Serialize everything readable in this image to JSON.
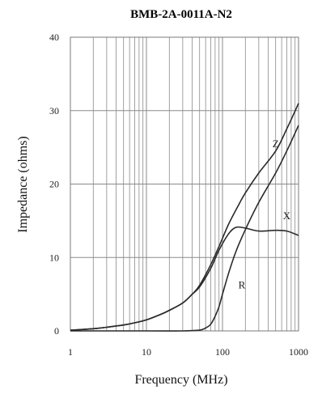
{
  "chart_data": {
    "type": "line",
    "title": "BMB-2A-0011A-N2",
    "xlabel": "Frequency (MHz)",
    "ylabel": "Impedance (ohms)",
    "xscale": "log",
    "xlim": [
      1,
      1000
    ],
    "ylim": [
      0,
      40
    ],
    "xticks": [
      1,
      10,
      100,
      1000
    ],
    "xtick_labels": [
      "1",
      "10",
      "100",
      "1000"
    ],
    "yticks": [
      0,
      10,
      20,
      30,
      40
    ],
    "ytick_labels": [
      "0",
      "10",
      "20",
      "30",
      "40"
    ],
    "grid": true,
    "series": [
      {
        "name": "Z",
        "x": [
          1,
          2,
          3,
          5,
          7,
          10,
          15,
          20,
          30,
          40,
          50,
          70,
          90,
          120,
          160,
          200,
          300,
          500,
          700,
          1000
        ],
        "y": [
          0.1,
          0.3,
          0.5,
          0.8,
          1.1,
          1.5,
          2.2,
          2.8,
          3.8,
          5.0,
          6.2,
          9.0,
          11.5,
          14.5,
          17.0,
          18.8,
          21.5,
          24.5,
          27.5,
          31.0
        ]
      },
      {
        "name": "X",
        "x": [
          1,
          2,
          3,
          5,
          7,
          10,
          15,
          20,
          30,
          40,
          50,
          70,
          90,
          120,
          150,
          200,
          300,
          500,
          700,
          1000
        ],
        "y": [
          0.1,
          0.3,
          0.5,
          0.8,
          1.1,
          1.5,
          2.2,
          2.8,
          3.8,
          5.0,
          6.0,
          8.5,
          11.0,
          13.2,
          14.1,
          14.0,
          13.6,
          13.7,
          13.6,
          13.0
        ]
      },
      {
        "name": "R",
        "x": [
          1,
          10,
          30,
          50,
          60,
          70,
          80,
          90,
          100,
          120,
          150,
          200,
          300,
          500,
          700,
          1000
        ],
        "y": [
          0,
          0,
          0,
          0.1,
          0.4,
          0.9,
          2.0,
          3.3,
          5.0,
          7.8,
          10.8,
          13.8,
          17.5,
          21.5,
          24.5,
          28.0
        ]
      }
    ],
    "annotations": [
      {
        "text": "Z",
        "x": 500,
        "y": 25
      },
      {
        "text": "X",
        "x": 700,
        "y": 15.2
      },
      {
        "text": "R",
        "x": 180,
        "y": 5.8
      }
    ]
  },
  "colors": {
    "curve": "#2a2a2a",
    "grid": "#8a8a8a",
    "frame": "#7a7a7a"
  }
}
